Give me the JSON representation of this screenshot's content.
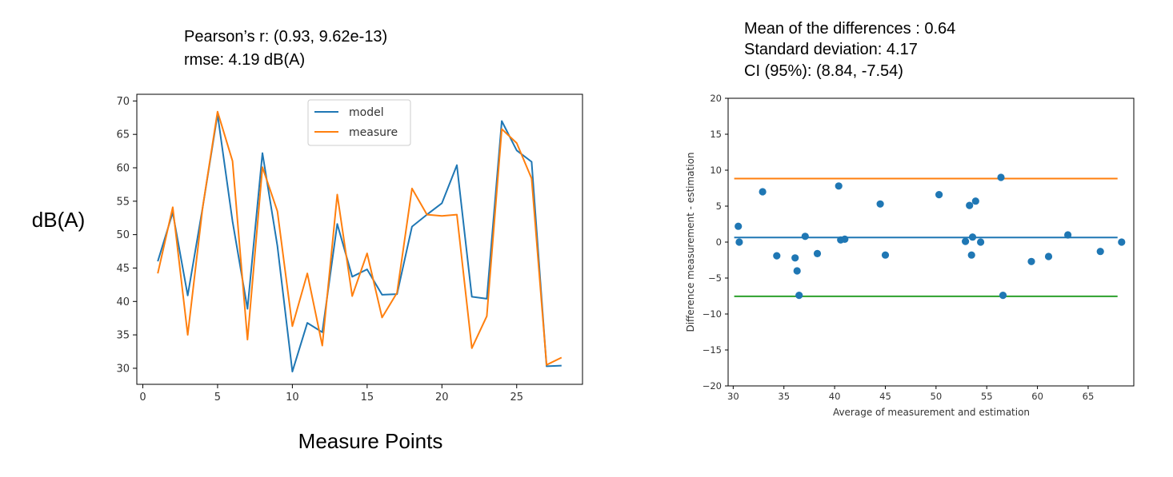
{
  "chart_data": [
    {
      "type": "line",
      "annotations": [
        "Pearson’s r: (0.93, 9.62e-13)",
        "rmse: 4.19 dB(A)"
      ],
      "xlabel": "Measure Points",
      "ylabel": "dB(A)",
      "xlim": [
        -0.4,
        29.4
      ],
      "ylim": [
        27.6,
        71.0
      ],
      "x_ticks": [
        0,
        5,
        10,
        15,
        20,
        25
      ],
      "y_ticks": [
        30,
        35,
        40,
        45,
        50,
        55,
        60,
        65,
        70
      ],
      "legend_position": "top-center",
      "grid": false,
      "x": [
        1,
        2,
        3,
        4,
        5,
        6,
        7,
        8,
        9,
        10,
        11,
        12,
        13,
        14,
        15,
        16,
        17,
        18,
        19,
        20,
        21,
        22,
        23,
        24,
        25,
        26,
        27,
        28
      ],
      "series": [
        {
          "name": "model",
          "color": "#1f77b4",
          "values": [
            46.0,
            53.3,
            40.9,
            54.0,
            68.0,
            52.0,
            38.9,
            62.2,
            48.3,
            29.5,
            36.8,
            35.4,
            51.6,
            43.7,
            44.8,
            41.0,
            41.1,
            51.2,
            53.0,
            54.7,
            60.4,
            40.7,
            40.4,
            67.0,
            62.6,
            60.9,
            30.3,
            30.4
          ]
        },
        {
          "name": "measure",
          "color": "#ff7f0e",
          "values": [
            44.2,
            54.1,
            35.0,
            54.0,
            68.4,
            61.0,
            34.3,
            60.1,
            53.5,
            36.3,
            44.2,
            33.4,
            56.0,
            40.8,
            47.2,
            37.6,
            41.3,
            56.9,
            53.0,
            52.8,
            53.0,
            33.0,
            37.8,
            65.8,
            63.7,
            58.4,
            30.5,
            31.6
          ]
        }
      ]
    },
    {
      "type": "scatter",
      "annotations": [
        "Mean of the differences : 0.64",
        "Standard deviation: 4.17",
        "CI (95%): (8.84, -7.54)"
      ],
      "xlabel": "Average of measurement and estimation",
      "ylabel": "Difference measurement - estimation",
      "xlim": [
        29.5,
        69.5
      ],
      "ylim": [
        -20,
        20
      ],
      "x_ticks": [
        30,
        35,
        40,
        45,
        50,
        55,
        60,
        65
      ],
      "y_ticks": [
        -20,
        -15,
        -10,
        -5,
        0,
        5,
        10,
        15,
        20
      ],
      "grid": false,
      "point_color": "#1f77b4",
      "points": [
        {
          "x": 30.5,
          "y": 2.2
        },
        {
          "x": 30.6,
          "y": 0.0
        },
        {
          "x": 32.9,
          "y": 7.0
        },
        {
          "x": 34.3,
          "y": -1.9
        },
        {
          "x": 36.1,
          "y": -2.2
        },
        {
          "x": 36.3,
          "y": -4.0
        },
        {
          "x": 36.5,
          "y": -7.4
        },
        {
          "x": 37.1,
          "y": 0.8
        },
        {
          "x": 38.3,
          "y": -1.6
        },
        {
          "x": 40.4,
          "y": 7.8
        },
        {
          "x": 40.6,
          "y": 0.3
        },
        {
          "x": 41.0,
          "y": 0.4
        },
        {
          "x": 44.5,
          "y": 5.3
        },
        {
          "x": 45.0,
          "y": -1.8
        },
        {
          "x": 50.3,
          "y": 6.6
        },
        {
          "x": 52.9,
          "y": 0.1
        },
        {
          "x": 53.3,
          "y": 5.1
        },
        {
          "x": 53.5,
          "y": -1.8
        },
        {
          "x": 53.6,
          "y": 0.7
        },
        {
          "x": 53.9,
          "y": 5.7
        },
        {
          "x": 54.4,
          "y": 0.0
        },
        {
          "x": 56.4,
          "y": 9.0
        },
        {
          "x": 56.6,
          "y": -7.4
        },
        {
          "x": 59.4,
          "y": -2.7
        },
        {
          "x": 61.1,
          "y": -2.0
        },
        {
          "x": 63.0,
          "y": 1.0
        },
        {
          "x": 66.2,
          "y": -1.3
        },
        {
          "x": 68.3,
          "y": 0.0
        }
      ],
      "reference_lines": [
        {
          "label": "upper limit",
          "y": 8.84,
          "color": "#ff7f0e",
          "x_range": [
            30.1,
            67.9
          ]
        },
        {
          "label": "mean",
          "y": 0.64,
          "color": "#1f77b4",
          "x_range": [
            30.1,
            67.9
          ]
        },
        {
          "label": "lower limit",
          "y": -7.54,
          "color": "#2ca02c",
          "x_range": [
            30.1,
            67.9
          ]
        }
      ]
    }
  ]
}
